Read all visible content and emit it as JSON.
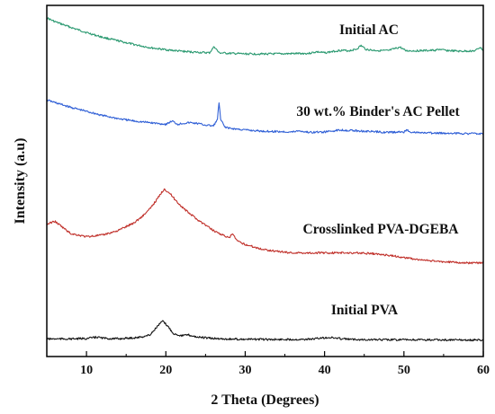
{
  "chart_data": {
    "type": "line",
    "xlabel": "2 Theta (Degrees)",
    "ylabel": "Intensity (a.u)",
    "xlim": [
      5,
      60
    ],
    "x_ticks": [
      "10",
      "20",
      "30",
      "40",
      "50",
      "60"
    ],
    "y_scale": "arbitrary units, stacked offsets",
    "grid": false,
    "legend": "labels placed above each curve",
    "series": [
      {
        "name": "Initial AC",
        "color": "#2a9970",
        "points": [
          [
            5,
            1.0
          ],
          [
            6,
            0.93
          ],
          [
            8,
            0.82
          ],
          [
            10,
            0.72
          ],
          [
            12,
            0.63
          ],
          [
            14,
            0.56
          ],
          [
            16,
            0.49
          ],
          [
            18,
            0.43
          ],
          [
            20,
            0.39
          ],
          [
            22,
            0.36
          ],
          [
            24,
            0.34
          ],
          [
            25.5,
            0.33
          ],
          [
            26.1,
            0.45
          ],
          [
            26.7,
            0.33
          ],
          [
            28,
            0.32
          ],
          [
            30,
            0.31
          ],
          [
            32,
            0.31
          ],
          [
            34,
            0.31
          ],
          [
            36,
            0.315
          ],
          [
            38,
            0.32
          ],
          [
            39,
            0.35
          ],
          [
            40,
            0.33
          ],
          [
            42,
            0.38
          ],
          [
            43,
            0.37
          ],
          [
            44,
            0.4
          ],
          [
            44.6,
            0.47
          ],
          [
            45.2,
            0.4
          ],
          [
            46,
            0.38
          ],
          [
            48,
            0.37
          ],
          [
            49.5,
            0.44
          ],
          [
            50.2,
            0.37
          ],
          [
            52,
            0.37
          ],
          [
            54,
            0.38
          ],
          [
            54.5,
            0.4
          ],
          [
            55,
            0.38
          ],
          [
            57,
            0.36
          ],
          [
            59,
            0.37
          ],
          [
            59.6,
            0.44
          ],
          [
            60,
            0.37
          ]
        ]
      },
      {
        "name": "30 wt.% Binder's AC Pellet",
        "color": "#2f5fd6",
        "points": [
          [
            5,
            0.74
          ],
          [
            6,
            0.71
          ],
          [
            8,
            0.65
          ],
          [
            10,
            0.6
          ],
          [
            12,
            0.55
          ],
          [
            14,
            0.51
          ],
          [
            16,
            0.48
          ],
          [
            18,
            0.46
          ],
          [
            20,
            0.44
          ],
          [
            20.8,
            0.48
          ],
          [
            21.5,
            0.44
          ],
          [
            22,
            0.45
          ],
          [
            23,
            0.46
          ],
          [
            24,
            0.45
          ],
          [
            25,
            0.43
          ],
          [
            26,
            0.42
          ],
          [
            26.5,
            0.5
          ],
          [
            26.7,
            0.71
          ],
          [
            26.9,
            0.5
          ],
          [
            27.4,
            0.41
          ],
          [
            28,
            0.39
          ],
          [
            30,
            0.37
          ],
          [
            32,
            0.355
          ],
          [
            34,
            0.35
          ],
          [
            36,
            0.345
          ],
          [
            36.7,
            0.36
          ],
          [
            38,
            0.34
          ],
          [
            40,
            0.345
          ],
          [
            42,
            0.37
          ],
          [
            44,
            0.36
          ],
          [
            46,
            0.35
          ],
          [
            48,
            0.34
          ],
          [
            50,
            0.345
          ],
          [
            50.4,
            0.37
          ],
          [
            51,
            0.34
          ],
          [
            52,
            0.335
          ],
          [
            54,
            0.33
          ],
          [
            56,
            0.33
          ],
          [
            58,
            0.325
          ],
          [
            60,
            0.325
          ]
        ]
      },
      {
        "name": "Crosslinked PVA-DGEBA",
        "color": "#c0302a",
        "points": [
          [
            5,
            0.42
          ],
          [
            6,
            0.44
          ],
          [
            7,
            0.4
          ],
          [
            8,
            0.36
          ],
          [
            10,
            0.34
          ],
          [
            12,
            0.35
          ],
          [
            14,
            0.38
          ],
          [
            16,
            0.43
          ],
          [
            17,
            0.47
          ],
          [
            18,
            0.52
          ],
          [
            19,
            0.59
          ],
          [
            19.8,
            0.65
          ],
          [
            20.5,
            0.62
          ],
          [
            21.5,
            0.56
          ],
          [
            22.5,
            0.51
          ],
          [
            24,
            0.45
          ],
          [
            26,
            0.38
          ],
          [
            28,
            0.33
          ],
          [
            28.4,
            0.36
          ],
          [
            29,
            0.31
          ],
          [
            30,
            0.29
          ],
          [
            32,
            0.26
          ],
          [
            34,
            0.245
          ],
          [
            36,
            0.235
          ],
          [
            38,
            0.235
          ],
          [
            40,
            0.235
          ],
          [
            42,
            0.235
          ],
          [
            44,
            0.235
          ],
          [
            46,
            0.23
          ],
          [
            48,
            0.22
          ],
          [
            50,
            0.205
          ],
          [
            52,
            0.19
          ],
          [
            54,
            0.18
          ],
          [
            56,
            0.175
          ],
          [
            58,
            0.17
          ],
          [
            60,
            0.17
          ]
        ]
      },
      {
        "name": "Initial PVA",
        "color": "#111111",
        "points": [
          [
            5,
            0.02
          ],
          [
            8,
            0.02
          ],
          [
            10,
            0.025
          ],
          [
            11.3,
            0.045
          ],
          [
            12.5,
            0.025
          ],
          [
            14,
            0.022
          ],
          [
            16,
            0.035
          ],
          [
            17,
            0.048
          ],
          [
            18,
            0.075
          ],
          [
            19,
            0.2
          ],
          [
            19.6,
            0.265
          ],
          [
            20.2,
            0.2
          ],
          [
            21,
            0.09
          ],
          [
            22,
            0.065
          ],
          [
            22.8,
            0.075
          ],
          [
            24,
            0.045
          ],
          [
            26,
            0.025
          ],
          [
            28,
            0.018
          ],
          [
            30,
            0.015
          ],
          [
            34,
            0.012
          ],
          [
            38,
            0.015
          ],
          [
            39.5,
            0.03
          ],
          [
            40.5,
            0.04
          ],
          [
            41.5,
            0.03
          ],
          [
            43,
            0.015
          ],
          [
            46,
            0.01
          ],
          [
            50,
            0.008
          ],
          [
            55,
            0.005
          ],
          [
            60,
            0.004
          ]
        ]
      }
    ]
  }
}
